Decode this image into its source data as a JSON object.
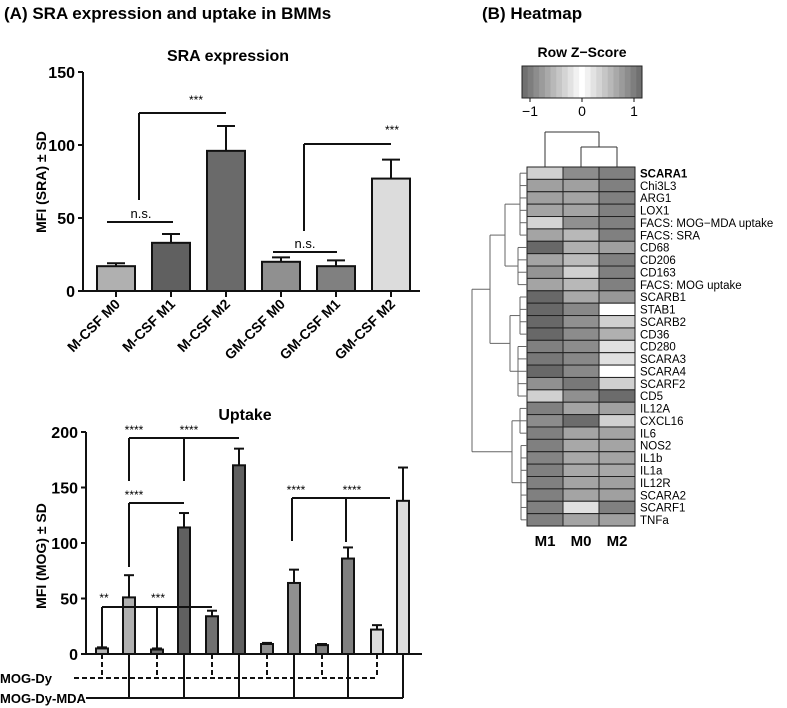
{
  "panel_a_title": "(A) SRA expression and uptake in BMMs",
  "panel_b_title": "(B) Heatmap",
  "chart_data": [
    {
      "type": "bar",
      "title": "SRA expression",
      "ylabel": "MFI (SRA) ± SD",
      "xlabel": "",
      "ylim": [
        0,
        150
      ],
      "yticks": [
        "0",
        "50",
        "100",
        "150"
      ],
      "categories": [
        "M-CSF M0",
        "M-CSF M1",
        "M-CSF M2",
        "GM-CSF M0",
        "GM-CSF M1",
        "GM-CSF M2"
      ],
      "values": [
        17,
        33,
        96,
        20,
        17,
        77
      ],
      "sd": [
        2,
        6,
        17,
        3,
        4,
        13
      ],
      "colors": [
        "#b0b0b0",
        "#606060",
        "#6a6a6a",
        "#909090",
        "#808080",
        "#dcdcdc"
      ],
      "annotations": [
        {
          "label": "n.s.",
          "from": 0,
          "to": 1
        },
        {
          "label": "***",
          "from": 1,
          "to": 2
        },
        {
          "label": "n.s.",
          "from": 3,
          "to": 4
        },
        {
          "label": "***",
          "from": 4,
          "to": 5
        }
      ]
    },
    {
      "type": "bar",
      "title": "Uptake",
      "ylabel": "MFI (MOG) ± SD",
      "xlabel": "",
      "ylim": [
        0,
        200
      ],
      "yticks": [
        "0",
        "50",
        "100",
        "150",
        "200"
      ],
      "values": [
        5,
        51,
        4,
        114,
        34,
        170,
        9,
        64,
        8,
        86,
        22,
        138
      ],
      "sd": [
        1,
        20,
        1,
        13,
        5,
        15,
        1,
        12,
        1,
        10,
        4,
        30
      ],
      "colors": [
        "#b4b4b4",
        "#b0b0b0",
        "#707070",
        "#606060",
        "#707070",
        "#606060",
        "#909090",
        "#909090",
        "#808080",
        "#808080",
        "#dcdcdc",
        "#dcdcdc"
      ],
      "treatment_rows": [
        {
          "label": "MOG-Dy",
          "bars": [
            0,
            2,
            4,
            6,
            8,
            10
          ],
          "style": "dashed"
        },
        {
          "label": "MOG-Dy-MDA",
          "bars": [
            1,
            3,
            5,
            7,
            9,
            11
          ],
          "style": "solid"
        }
      ],
      "annotations": [
        {
          "label": "****",
          "from": 1,
          "to": 5
        },
        {
          "label": "****",
          "from": 3,
          "to": 5
        },
        {
          "label": "****",
          "from": 1,
          "to": 3
        },
        {
          "label": "**",
          "from": 0,
          "to": 4
        },
        {
          "label": "***",
          "from": 2,
          "to": 4
        },
        {
          "label": "****",
          "from": 7,
          "to": 11
        },
        {
          "label": "****",
          "from": 9,
          "to": 11
        }
      ]
    },
    {
      "type": "heatmap",
      "title": "Row Z−Score",
      "key_ticks": [
        "−1",
        "0",
        "1"
      ],
      "key_range": [
        -1,
        1
      ],
      "columns": [
        "M1",
        "M0",
        "M2"
      ],
      "rows": [
        "SCARA1",
        "Chi3L3",
        "ARG1",
        "LOX1",
        "FACS: MOG−MDA uptake",
        "FACS: SRA",
        "CD68",
        "CD206",
        "CD163",
        "FACS: MOG uptake",
        "SCARB1",
        "STAB1",
        "SCARB2",
        "CD36",
        "CD280",
        "SCARA3",
        "SCARA4",
        "SCARF2",
        "CD5",
        "IL12A",
        "CXCL16",
        "IL6",
        "NOS2",
        "IL1b",
        "IL1a",
        "IL12R",
        "SCARA2",
        "SCARF1",
        "TNFa"
      ],
      "cell_colors": [
        [
          "#d0d0d0",
          "#8c8c8c",
          "#808080"
        ],
        [
          "#a0a0a0",
          "#a0a0a0",
          "#808080"
        ],
        [
          "#a0a0a0",
          "#a4a4a4",
          "#808080"
        ],
        [
          "#a4a4a4",
          "#a4a4a4",
          "#808080"
        ],
        [
          "#d4d4d4",
          "#909090",
          "#808080"
        ],
        [
          "#a4a4a4",
          "#b8b8b8",
          "#808080"
        ],
        [
          "#686868",
          "#b0b0b0",
          "#a0a0a0"
        ],
        [
          "#a4a4a4",
          "#bcbcbc",
          "#808080"
        ],
        [
          "#949494",
          "#d0d0d0",
          "#808080"
        ],
        [
          "#a4a4a4",
          "#b8b8b8",
          "#808080"
        ],
        [
          "#686868",
          "#a8a8a8",
          "#989898"
        ],
        [
          "#686868",
          "#888888",
          "#ffffff"
        ],
        [
          "#686868",
          "#909090",
          "#d0d0d0"
        ],
        [
          "#686868",
          "#8c8c8c",
          "#b0b0b0"
        ],
        [
          "#808080",
          "#8c8c8c",
          "#e0e0e0"
        ],
        [
          "#787878",
          "#888888",
          "#e0e0e0"
        ],
        [
          "#686868",
          "#888888",
          "#ffffff"
        ],
        [
          "#909090",
          "#787878",
          "#d0d0d0"
        ],
        [
          "#d0d0d0",
          "#909090",
          "#6c6c6c"
        ],
        [
          "#808080",
          "#a4a4a4",
          "#a0a0a0"
        ],
        [
          "#8c8c8c",
          "#6c6c6c",
          "#d0d0d0"
        ],
        [
          "#808080",
          "#a4a4a4",
          "#a4a4a4"
        ],
        [
          "#808080",
          "#a8a8a8",
          "#a4a4a4"
        ],
        [
          "#848484",
          "#a8a8a8",
          "#a4a4a4"
        ],
        [
          "#808080",
          "#a8a8a8",
          "#a8a8a8"
        ],
        [
          "#808080",
          "#a4a4a4",
          "#a0a0a0"
        ],
        [
          "#808080",
          "#a4a4a4",
          "#a0a0a0"
        ],
        [
          "#808080",
          "#e0e0e0",
          "#808080"
        ],
        [
          "#808080",
          "#a4a4a4",
          "#a0a0a0"
        ]
      ],
      "bold_rows": [
        "SCARA1"
      ]
    }
  ]
}
